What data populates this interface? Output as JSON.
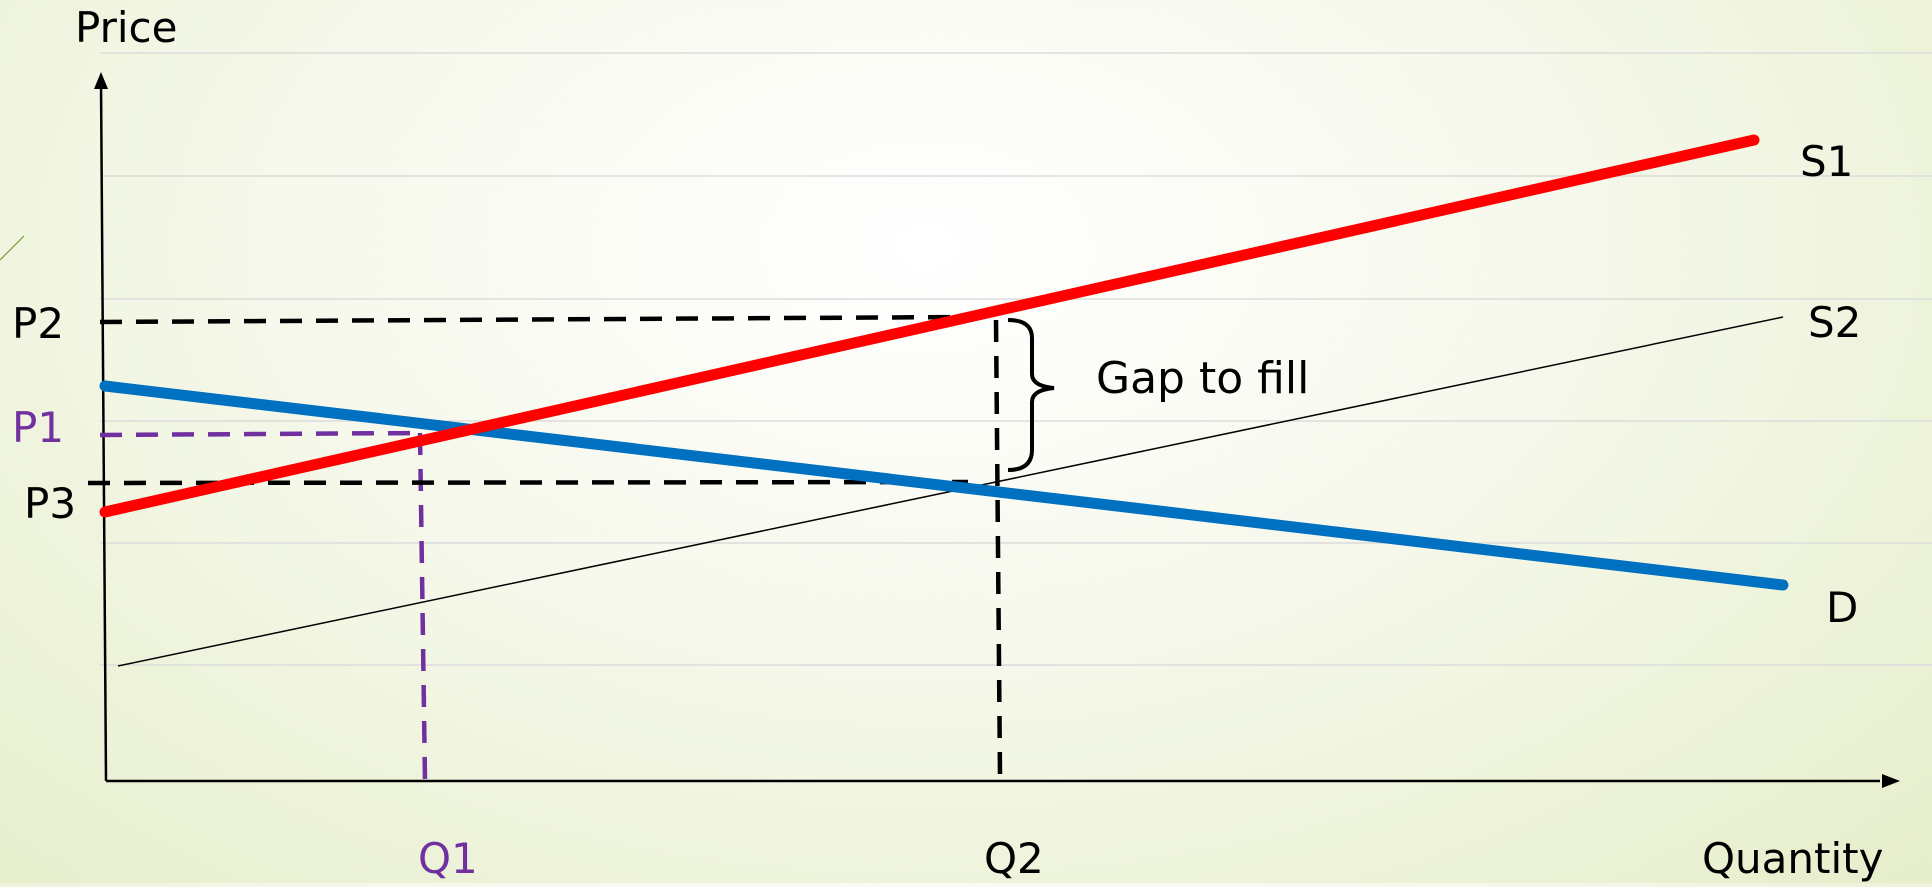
{
  "diagram": {
    "y_axis_label": "Price",
    "x_axis_label": "Quantity",
    "price_labels": {
      "p1": "P1",
      "p2": "P2",
      "p3": "P3"
    },
    "quantity_labels": {
      "q1": "Q1",
      "q2": "Q2"
    },
    "curve_labels": {
      "s1": "S1",
      "s2": "S2",
      "d": "D"
    },
    "annotation": "Gap to fill",
    "colors": {
      "s1": "#ff0000",
      "s2": "#000000",
      "d": "#0070c0",
      "q1_p1_guides": "#7030a0",
      "guides": "#000000",
      "axes": "#000000",
      "gridlines": "#dcdcdc"
    }
  }
}
